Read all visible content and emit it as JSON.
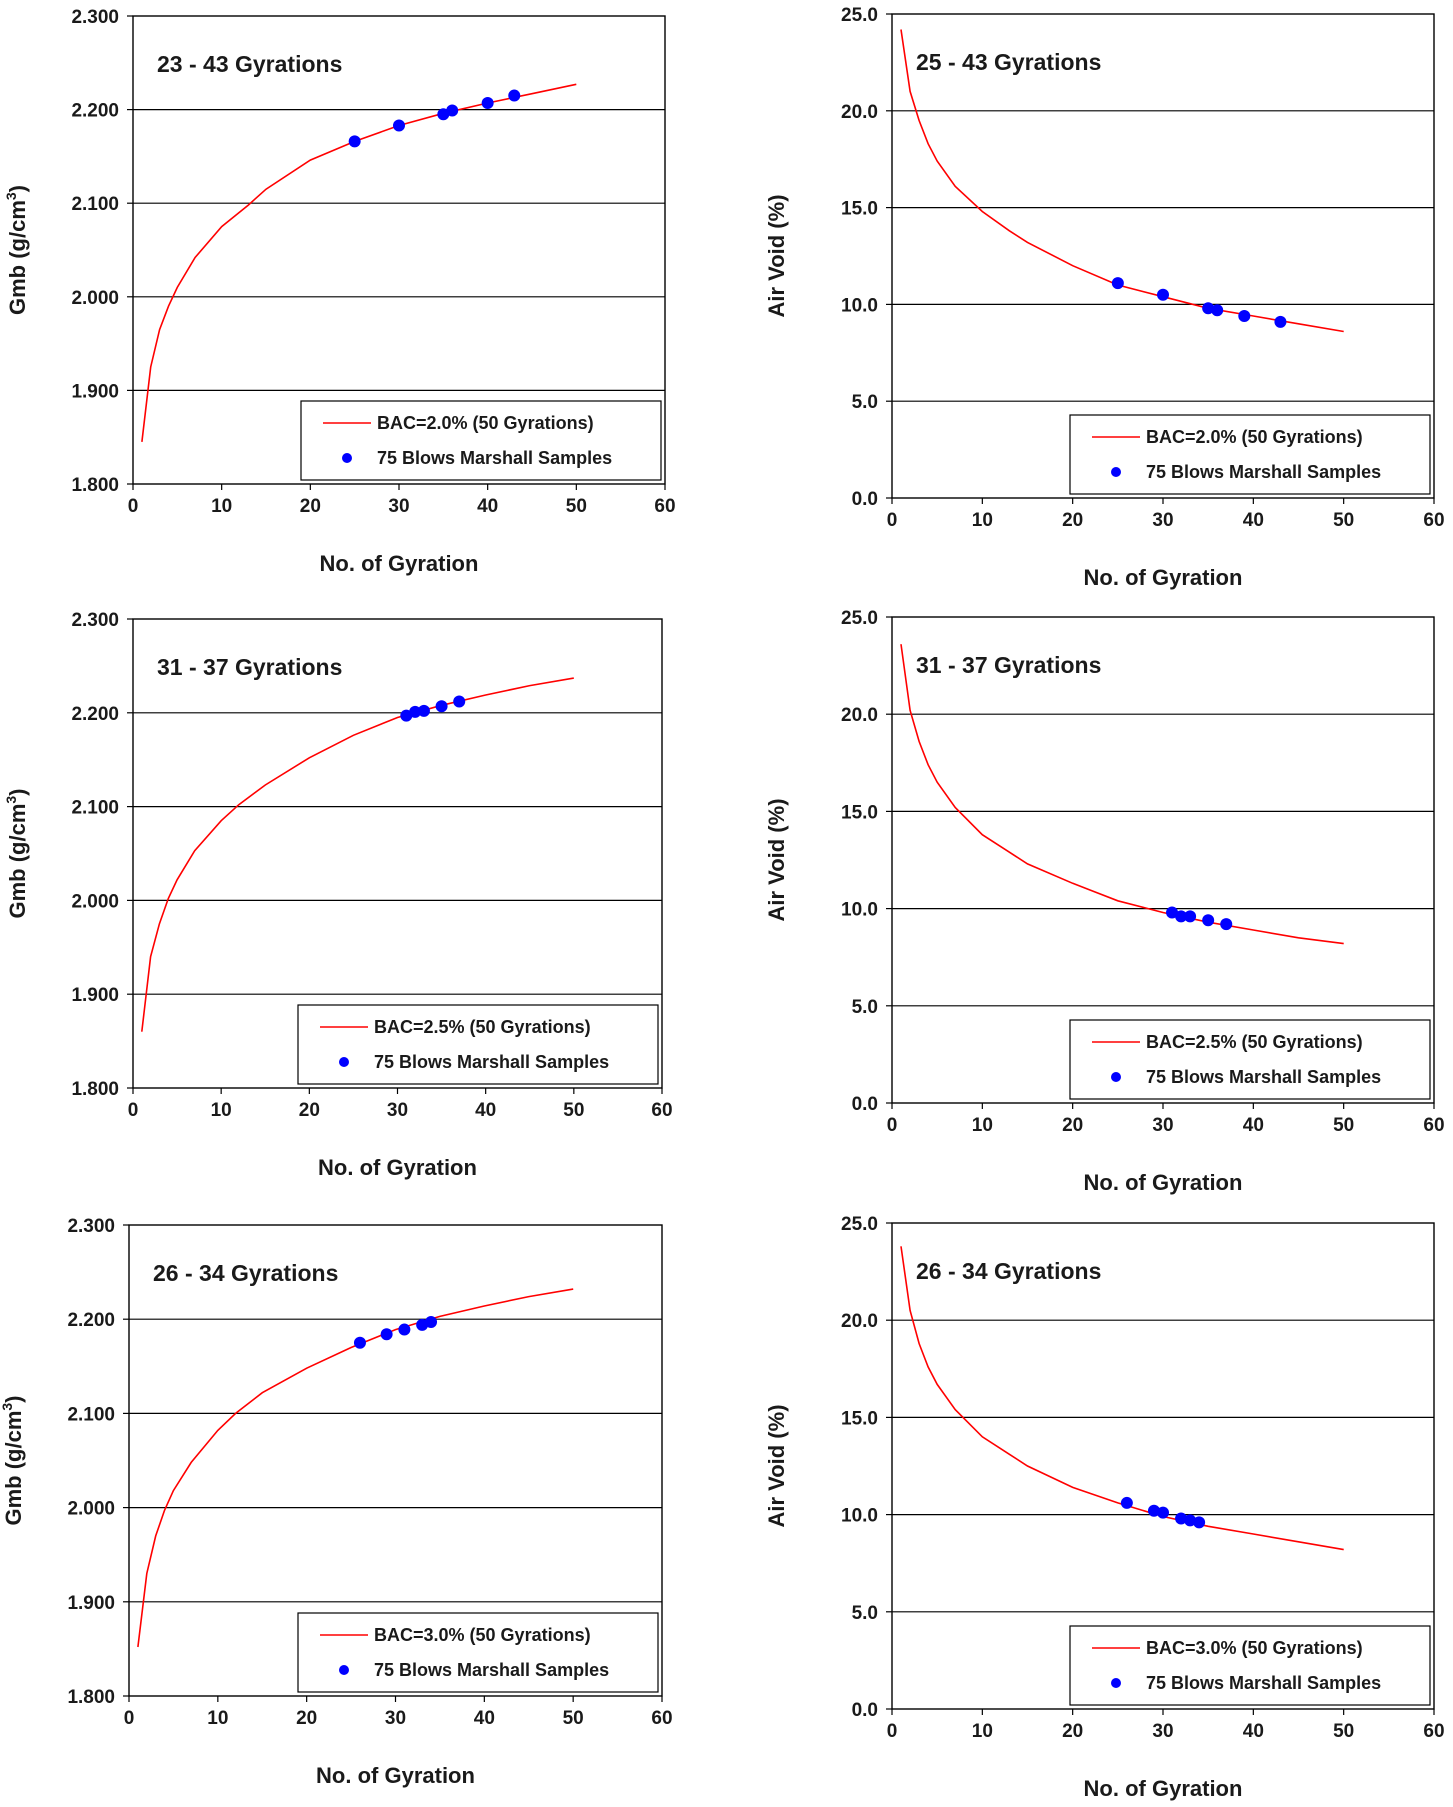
{
  "colors": {
    "curve": "#ff0000",
    "marker": "#0000ff",
    "axis": "#000000"
  },
  "chart_data": [
    {
      "type": "line+scatter",
      "title": "23 - 43 Gyrations",
      "xlabel": "No. of Gyration",
      "ylabel_main": "Gmb (g/cm",
      "ylabel_sup": "3",
      "ylabel_tail": ")",
      "xlim": [
        0,
        60
      ],
      "xticks": [
        0,
        10,
        20,
        30,
        40,
        50,
        60
      ],
      "xtick_labels": [
        "0",
        "10",
        "20",
        "30",
        "40",
        "50",
        "60"
      ],
      "ylim": [
        1.8,
        2.3
      ],
      "yticks": [
        1.8,
        1.9,
        2.0,
        2.1,
        2.2,
        2.3
      ],
      "ytick_labels": [
        "1.800",
        "1.900",
        "2.000",
        "2.100",
        "2.200",
        "2.300"
      ],
      "gridlines_y": [
        1.9,
        2.0,
        2.1,
        2.2
      ],
      "legend_position": "bottom-right",
      "series": [
        {
          "name": "BAC=2.0% (50 Gyrations)",
          "kind": "line",
          "x": [
            1,
            2,
            3,
            4,
            5,
            7,
            10,
            13,
            15,
            20,
            25,
            30,
            35,
            40,
            45,
            50
          ],
          "y": [
            1.845,
            1.925,
            1.965,
            1.99,
            2.01,
            2.042,
            2.075,
            2.098,
            2.115,
            2.146,
            2.166,
            2.183,
            2.196,
            2.207,
            2.217,
            2.227
          ]
        },
        {
          "name": "75 Blows Marshall Samples",
          "kind": "scatter",
          "x": [
            25,
            30,
            35,
            36,
            40,
            43
          ],
          "y": [
            2.166,
            2.183,
            2.195,
            2.199,
            2.207,
            2.215
          ]
        }
      ]
    },
    {
      "type": "line+scatter",
      "title": "25 - 43 Gyrations",
      "xlabel": "No. of Gyration",
      "ylabel_main": "Air Void (%)",
      "ylabel_sup": "",
      "ylabel_tail": "",
      "xlim": [
        0,
        60
      ],
      "xticks": [
        0,
        10,
        20,
        30,
        40,
        50,
        60
      ],
      "xtick_labels": [
        "0",
        "10",
        "20",
        "30",
        "40",
        "50",
        "60"
      ],
      "ylim": [
        0,
        25
      ],
      "yticks": [
        0,
        5,
        10,
        15,
        20,
        25
      ],
      "ytick_labels": [
        "0.0",
        "5.0",
        "10.0",
        "15.0",
        "20.0",
        "25.0"
      ],
      "gridlines_y": [
        5,
        10,
        15,
        20
      ],
      "legend_position": "bottom-right",
      "series": [
        {
          "name": "BAC=2.0% (50 Gyrations)",
          "kind": "line",
          "x": [
            1,
            2,
            3,
            4,
            5,
            7,
            10,
            13,
            15,
            20,
            25,
            30,
            35,
            40,
            45,
            50
          ],
          "y": [
            24.2,
            21.0,
            19.5,
            18.3,
            17.4,
            16.1,
            14.8,
            13.8,
            13.2,
            12.0,
            11.0,
            10.4,
            9.8,
            9.4,
            9.0,
            8.6
          ]
        },
        {
          "name": "75 Blows Marshall Samples",
          "kind": "scatter",
          "x": [
            25,
            30,
            35,
            36,
            39,
            43
          ],
          "y": [
            11.1,
            10.5,
            9.8,
            9.7,
            9.4,
            9.1
          ]
        }
      ]
    },
    {
      "type": "line+scatter",
      "title": "31 - 37 Gyrations",
      "xlabel": "No. of Gyration",
      "ylabel_main": "Gmb (g/cm",
      "ylabel_sup": "3",
      "ylabel_tail": ")",
      "xlim": [
        0,
        60
      ],
      "xticks": [
        0,
        10,
        20,
        30,
        40,
        50,
        60
      ],
      "xtick_labels": [
        "0",
        "10",
        "20",
        "30",
        "40",
        "50",
        "60"
      ],
      "ylim": [
        1.8,
        2.3
      ],
      "yticks": [
        1.8,
        1.9,
        2.0,
        2.1,
        2.2,
        2.3
      ],
      "ytick_labels": [
        "1.800",
        "1.900",
        "2.000",
        "2.100",
        "2.200",
        "2.300"
      ],
      "gridlines_y": [
        1.9,
        2.0,
        2.1,
        2.2
      ],
      "legend_position": "bottom-right",
      "series": [
        {
          "name": "BAC=2.5% (50 Gyrations)",
          "kind": "line",
          "x": [
            1,
            2,
            3,
            4,
            5,
            7,
            10,
            12,
            15,
            20,
            25,
            30,
            35,
            40,
            45,
            50
          ],
          "y": [
            1.86,
            1.94,
            1.975,
            2.002,
            2.022,
            2.053,
            2.085,
            2.102,
            2.123,
            2.152,
            2.176,
            2.195,
            2.208,
            2.219,
            2.229,
            2.237
          ]
        },
        {
          "name": "75 Blows Marshall Samples",
          "kind": "scatter",
          "x": [
            31,
            32,
            33,
            35,
            37
          ],
          "y": [
            2.197,
            2.201,
            2.202,
            2.207,
            2.212
          ]
        }
      ]
    },
    {
      "type": "line+scatter",
      "title": "31 - 37 Gyrations",
      "xlabel": "No. of Gyration",
      "ylabel_main": "Air Void (%)",
      "ylabel_sup": "",
      "ylabel_tail": "",
      "xlim": [
        0,
        60
      ],
      "xticks": [
        0,
        10,
        20,
        30,
        40,
        50,
        60
      ],
      "xtick_labels": [
        "0",
        "10",
        "20",
        "30",
        "40",
        "50",
        "60"
      ],
      "ylim": [
        0,
        25
      ],
      "yticks": [
        0,
        5,
        10,
        15,
        20,
        25
      ],
      "ytick_labels": [
        "0.0",
        "5.0",
        "10.0",
        "15.0",
        "20.0",
        "25.0"
      ],
      "gridlines_y": [
        5,
        10,
        15,
        20
      ],
      "legend_position": "bottom-right",
      "series": [
        {
          "name": "BAC=2.5% (50 Gyrations)",
          "kind": "line",
          "x": [
            1,
            2,
            3,
            4,
            5,
            7,
            10,
            13,
            15,
            20,
            25,
            30,
            35,
            40,
            45,
            50
          ],
          "y": [
            23.6,
            20.2,
            18.6,
            17.4,
            16.5,
            15.2,
            13.8,
            12.9,
            12.3,
            11.3,
            10.4,
            9.8,
            9.3,
            8.9,
            8.5,
            8.2
          ]
        },
        {
          "name": "75 Blows Marshall Samples",
          "kind": "scatter",
          "x": [
            31,
            32,
            33,
            35,
            37
          ],
          "y": [
            9.8,
            9.6,
            9.6,
            9.4,
            9.2
          ]
        }
      ]
    },
    {
      "type": "line+scatter",
      "title": "26 - 34 Gyrations",
      "xlabel": "No. of Gyration",
      "ylabel_main": "Gmb (g/cm",
      "ylabel_sup": "3",
      "ylabel_tail": ")",
      "xlim": [
        0,
        60
      ],
      "xticks": [
        0,
        10,
        20,
        30,
        40,
        50,
        60
      ],
      "xtick_labels": [
        "0",
        "10",
        "20",
        "30",
        "40",
        "50",
        "60"
      ],
      "ylim": [
        1.8,
        2.3
      ],
      "yticks": [
        1.8,
        1.9,
        2.0,
        2.1,
        2.2,
        2.3
      ],
      "ytick_labels": [
        "1.800",
        "1.900",
        "2.000",
        "2.100",
        "2.200",
        "2.300"
      ],
      "gridlines_y": [
        1.9,
        2.0,
        2.1,
        2.2
      ],
      "legend_position": "bottom-right",
      "series": [
        {
          "name": "BAC=3.0% (50 Gyrations)",
          "kind": "line",
          "x": [
            1,
            2,
            3,
            4,
            5,
            7,
            10,
            12,
            15,
            20,
            25,
            30,
            35,
            40,
            45,
            50
          ],
          "y": [
            1.852,
            1.93,
            1.97,
            1.997,
            2.018,
            2.048,
            2.082,
            2.1,
            2.122,
            2.148,
            2.17,
            2.189,
            2.203,
            2.214,
            2.224,
            2.232
          ]
        },
        {
          "name": "75 Blows Marshall Samples",
          "kind": "scatter",
          "x": [
            26,
            29,
            31,
            33,
            34
          ],
          "y": [
            2.175,
            2.184,
            2.189,
            2.194,
            2.197
          ]
        }
      ]
    },
    {
      "type": "line+scatter",
      "title": "26 - 34 Gyrations",
      "xlabel": "No. of Gyration",
      "ylabel_main": "Air Void (%)",
      "ylabel_sup": "",
      "ylabel_tail": "",
      "xlim": [
        0,
        60
      ],
      "xticks": [
        0,
        10,
        20,
        30,
        40,
        50,
        60
      ],
      "xtick_labels": [
        "0",
        "10",
        "20",
        "30",
        "40",
        "50",
        "60"
      ],
      "ylim": [
        0,
        25
      ],
      "yticks": [
        0,
        5,
        10,
        15,
        20,
        25
      ],
      "ytick_labels": [
        "0.0",
        "5.0",
        "10.0",
        "15.0",
        "20.0",
        "25.0"
      ],
      "gridlines_y": [
        5,
        10,
        15,
        20
      ],
      "legend_position": "bottom-right",
      "series": [
        {
          "name": "BAC=3.0% (50 Gyrations)",
          "kind": "line",
          "x": [
            1,
            2,
            3,
            4,
            5,
            7,
            10,
            13,
            15,
            20,
            25,
            30,
            35,
            40,
            45,
            50
          ],
          "y": [
            23.8,
            20.5,
            18.8,
            17.6,
            16.7,
            15.4,
            14.0,
            13.1,
            12.5,
            11.4,
            10.6,
            9.9,
            9.4,
            9.0,
            8.6,
            8.2
          ]
        },
        {
          "name": "75 Blows Marshall Samples",
          "kind": "scatter",
          "x": [
            26,
            29,
            30,
            32,
            33,
            34
          ],
          "y": [
            10.6,
            10.2,
            10.1,
            9.8,
            9.7,
            9.6
          ]
        }
      ]
    }
  ]
}
